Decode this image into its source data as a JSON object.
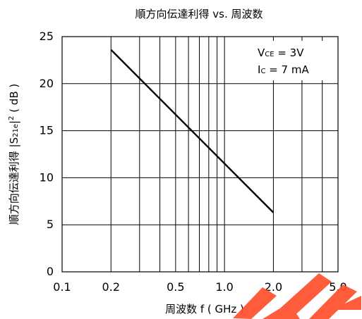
{
  "chart_data": {
    "type": "line",
    "title": "順方向伝達利得 vs. 周波数",
    "xlabel": "周波数 f ( GHz )",
    "ylabel_main": "順方向伝達利得 ",
    "ylabel_sym": "|S",
    "ylabel_sub": "21e",
    "ylabel_tail": "|",
    "ylabel_sup": "2",
    "ylabel_unit": " ( dB )",
    "x_scale": "log",
    "xlim": [
      0.1,
      5.0
    ],
    "ylim": [
      0,
      25
    ],
    "x_ticks": [
      "0.1",
      "0.2",
      "0.5",
      "1.0",
      "2.0",
      "5.0"
    ],
    "y_ticks": [
      "0",
      "5",
      "10",
      "15",
      "20",
      "25"
    ],
    "grid": true,
    "series": [
      {
        "x": [
          0.2,
          2.0
        ],
        "y": [
          23.6,
          6.3
        ]
      }
    ],
    "annotations": [
      {
        "main": "V",
        "sub": "CE",
        "rest": " = 3V"
      },
      {
        "main": "I",
        "sub": "C",
        "rest": " = 7 mA"
      }
    ]
  },
  "style": {
    "line_color": "#000000",
    "grid_color": "#000000",
    "watermark_color": "#FF4F2B"
  }
}
